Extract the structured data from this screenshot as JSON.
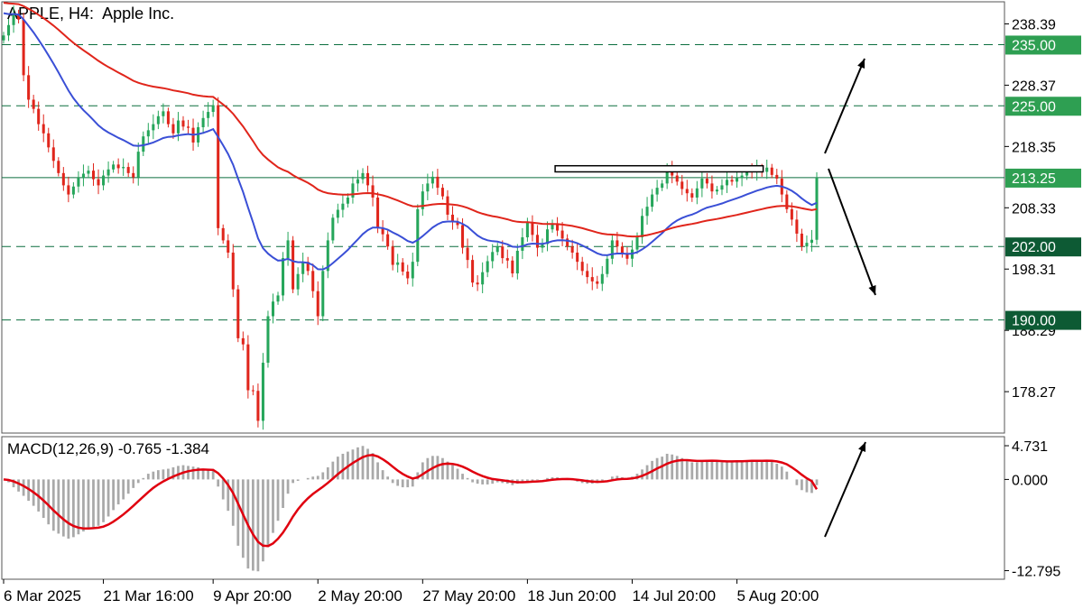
{
  "header": {
    "symbol": "APPLE, H4:",
    "name": "Apple Inc.",
    "macd_label": "MACD(12,26,9)",
    "macd_values": "-0.765 -1.384"
  },
  "colors": {
    "bull": "#26a65b",
    "bear": "#e0251b",
    "ma_fast": "#3a4fd6",
    "ma_slow": "#e0251b",
    "level_line": "#0b6e3f",
    "level_box": "#2e9f52",
    "level_box_dark": "#0d5a34",
    "macd_hist": "#a9a9a9",
    "macd_signal": "#e0000f",
    "grid": "#d0d0d0"
  },
  "chart_data": [
    {
      "type": "candlestick",
      "title": "APPLE, H4: Apple Inc.",
      "y_ticks": [
        "238.39",
        "228.37",
        "218.35",
        "208.33",
        "198.31",
        "188.29",
        "178.27"
      ],
      "ylim": [
        171.5,
        242.0
      ],
      "x_ticks": [
        "6 Mar 2025",
        "21 Mar 16:00",
        "9 Apr 20:00",
        "2 May 20:00",
        "27 May 20:00",
        "18 Jun 20:00",
        "14 Jul 20:00",
        "5 Aug 20:00"
      ],
      "levels": [
        {
          "value": 235.0,
          "label": "235.00",
          "style": "dashed"
        },
        {
          "value": 225.0,
          "label": "225.00",
          "style": "dashed"
        },
        {
          "value": 213.25,
          "label": "213.25",
          "style": "solid"
        },
        {
          "value": 202.0,
          "label": "202.00",
          "style": "dashed",
          "dark": true
        },
        {
          "value": 190.0,
          "label": "190.00",
          "style": "dashed",
          "dark": true
        }
      ],
      "resistance_box": {
        "from_candle": 112,
        "to_candle": 149,
        "low": 214.2,
        "high": 215.2
      },
      "closes": [
        236.5,
        238.2,
        240.0,
        239.1,
        230.0,
        226.0,
        224.5,
        222.0,
        220.5,
        218.2,
        216.0,
        214.0,
        212.0,
        210.5,
        211.8,
        213.2,
        213.9,
        214.4,
        213.0,
        212.0,
        213.6,
        214.6,
        215.4,
        214.8,
        215.0,
        214.0,
        213.3,
        217.5,
        220.0,
        221.0,
        222.0,
        223.3,
        224.1,
        222.0,
        220.5,
        222.6,
        221.6,
        221.4,
        219.0,
        221.5,
        223.0,
        224.0,
        225.1,
        205.0,
        203.0,
        201.0,
        195.0,
        187.0,
        186.0,
        178.5,
        178.4,
        173.5,
        183.0,
        190.6,
        193.0,
        194.0,
        200.1,
        203.0,
        195.0,
        197.5,
        199.5,
        198.0,
        194.7,
        190.6,
        198.0,
        203.0,
        206.7,
        208.0,
        209.0,
        210.0,
        212.3,
        213.0,
        214.0,
        212.0,
        210.0,
        205.0,
        204.0,
        202.0,
        199.0,
        199.4,
        197.9,
        196.8,
        199.5,
        208.1,
        211.0,
        212.3,
        213.4,
        211.6,
        210.2,
        207.2,
        206.0,
        205.5,
        201.8,
        199.8,
        196.1,
        195.8,
        197.8,
        199.6,
        201.1,
        202.0,
        200.1,
        199.7,
        197.6,
        201.3,
        203.5,
        205.9,
        203.9,
        201.8,
        202.4,
        204.8,
        205.8,
        204.6,
        203.3,
        202.0,
        201.0,
        199.5,
        198.0,
        197.0,
        196.3,
        195.9,
        197.5,
        200.0,
        203.0,
        202.0,
        200.8,
        200.0,
        201.5,
        203.5,
        207.0,
        208.5,
        210.5,
        211.6,
        212.3,
        214.6,
        213.6,
        212.6,
        211.4,
        210.7,
        210.0,
        211.5,
        213.1,
        212.3,
        211.0,
        211.3,
        212.0,
        212.9,
        212.6,
        213.2,
        213.6,
        214.4,
        214.2,
        214.6,
        214.2,
        214.9,
        213.7,
        213.1,
        210.5,
        208.1,
        206.4,
        204.1,
        202.0,
        202.6,
        203.1,
        213.25
      ],
      "macd_ticks": [
        "4.731",
        "0.000",
        "-12.795"
      ],
      "macd_ylim": [
        -14.0,
        6.0
      ],
      "macd_values": [
        0.0,
        -0.4,
        -1.1,
        -1.7,
        -2.3,
        -3.0,
        -3.7,
        -4.5,
        -5.4,
        -6.3,
        -7.2,
        -7.6,
        -8.0,
        -8.3,
        -8.1,
        -7.7,
        -7.3,
        -6.9,
        -6.7,
        -6.5,
        -6.0,
        -5.2,
        -4.3,
        -3.5,
        -2.8,
        -2.0,
        -1.2,
        -0.5,
        0.2,
        0.8,
        1.1,
        1.3,
        1.4,
        1.5,
        1.7,
        1.9,
        2.0,
        1.9,
        1.8,
        1.7,
        1.5,
        1.3,
        1.2,
        -1.0,
        -2.8,
        -4.4,
        -6.5,
        -9.3,
        -11.0,
        -12.5,
        -12.8,
        -12.9,
        -11.5,
        -9.5,
        -7.5,
        -5.8,
        -4.0,
        -2.0,
        -0.5,
        -0.2,
        0.0,
        0.2,
        0.4,
        0.5,
        1.0,
        1.7,
        2.5,
        3.2,
        3.6,
        3.9,
        4.2,
        4.5,
        4.7,
        4.3,
        3.7,
        2.4,
        1.3,
        0.4,
        -0.5,
        -0.9,
        -1.1,
        -1.1,
        -1.0,
        1.0,
        2.4,
        3.0,
        3.3,
        3.3,
        3.0,
        2.5,
        2.0,
        1.5,
        0.8,
        0.2,
        -0.4,
        -0.6,
        -0.7,
        -0.7,
        -0.6,
        -0.4,
        -0.5,
        -0.6,
        -0.8,
        -0.6,
        -0.4,
        -0.2,
        -0.2,
        -0.1,
        0.0,
        0.2,
        0.3,
        0.3,
        0.2,
        0.1,
        -0.1,
        -0.3,
        -0.5,
        -0.6,
        -0.6,
        -0.5,
        -0.2,
        0.0,
        0.4,
        0.5,
        0.3,
        0.2,
        0.4,
        0.8,
        1.4,
        2.0,
        2.6,
        3.0,
        3.2,
        3.6,
        3.5,
        3.3,
        3.0,
        2.7,
        2.4,
        2.4,
        2.6,
        2.7,
        2.7,
        2.5,
        2.4,
        2.4,
        2.5,
        2.6,
        2.6,
        2.7,
        2.7,
        2.7,
        2.6,
        2.7,
        2.5,
        2.2,
        1.8,
        1.1,
        0.0,
        -0.8,
        -1.5,
        -1.8,
        -1.9,
        -0.8
      ],
      "macd_signal_last": -1.384
    }
  ]
}
